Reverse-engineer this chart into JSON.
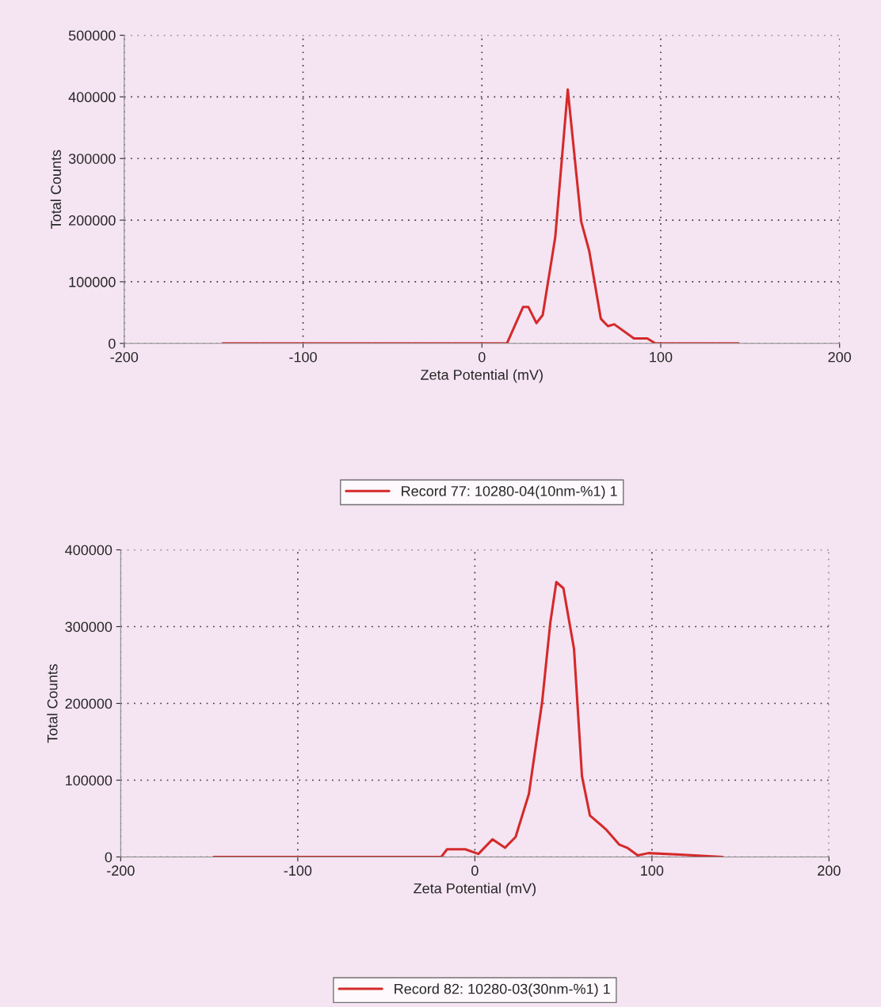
{
  "chart_data": [
    {
      "type": "line",
      "xlabel": "Zeta Potential (mV)",
      "ylabel": "Total Counts",
      "xlim": [
        -200,
        200
      ],
      "xticks": [
        -200,
        -100,
        0,
        100,
        200
      ],
      "ylim": [
        0,
        500000
      ],
      "yticks": [
        0,
        100000,
        200000,
        300000,
        400000,
        500000
      ],
      "grid": true,
      "legend": "bottom",
      "line_style": "solid",
      "series": [
        {
          "name": "Record 77: 10280-04(10nm-%1) 1",
          "color": "#d42a2a",
          "x": [
            -145,
            14,
            23,
            26,
            30.5,
            34,
            41,
            48,
            55.5,
            60,
            66.5,
            70.5,
            74,
            85,
            92.5,
            97,
            143.5
          ],
          "values": [
            0,
            0,
            59000,
            59000,
            33000,
            46000,
            172000,
            412000,
            198000,
            150000,
            40000,
            28000,
            31000,
            8000,
            8000,
            0,
            0
          ]
        }
      ]
    },
    {
      "type": "line",
      "xlabel": "Zeta Potential (mV)",
      "ylabel": "Total Counts",
      "xlim": [
        -200,
        200
      ],
      "xticks": [
        -200,
        -100,
        0,
        100,
        200
      ],
      "ylim": [
        0,
        400000
      ],
      "yticks": [
        0,
        100000,
        200000,
        300000,
        400000
      ],
      "grid": true,
      "legend": "bottom",
      "line_style": "solid",
      "series": [
        {
          "name": "Record 82: 10280-03(30nm-%1) 1",
          "color": "#d42a2a",
          "x": [
            -147.5,
            -19,
            -15.7,
            -5.4,
            2,
            10,
            17,
            23,
            30.5,
            38,
            42.6,
            46,
            50,
            56,
            60.5,
            65,
            74,
            81.6,
            86,
            92,
            98,
            116,
            140
          ],
          "values": [
            0,
            0,
            10000,
            10000,
            4000,
            23000,
            12000,
            26000,
            82000,
            202000,
            305000,
            358000,
            350000,
            271000,
            105000,
            54000,
            36000,
            16000,
            12000,
            2000,
            5000,
            3000,
            0
          ]
        }
      ]
    }
  ]
}
